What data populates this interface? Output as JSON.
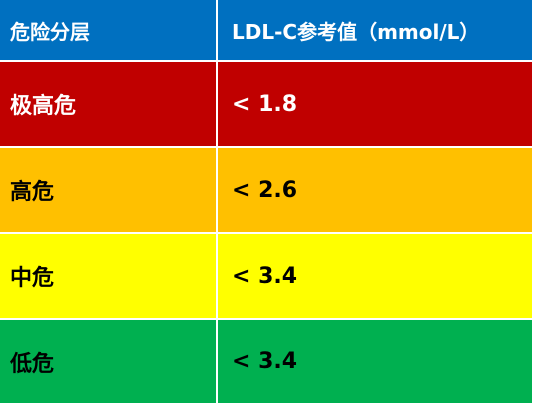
{
  "table": {
    "header": [
      "危险分层",
      "LDL-C参考值（mmol/L）"
    ],
    "rows": [
      [
        "极高危",
        "< 1.8"
      ],
      [
        "高危",
        "< 2.6"
      ],
      [
        "中危",
        "< 3.4"
      ],
      [
        "低危",
        "< 3.4"
      ]
    ]
  }
}
